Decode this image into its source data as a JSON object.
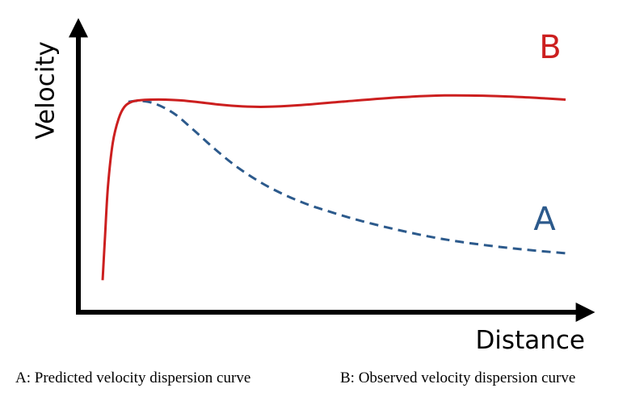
{
  "chart_data": {
    "type": "line",
    "title": "",
    "xlabel": "Distance",
    "ylabel": "Velocity",
    "grid": false,
    "ticks": false,
    "legend": "captions-below",
    "xlim": [
      0,
      100
    ],
    "ylim": [
      0,
      100
    ],
    "series": [
      {
        "name": "A",
        "style": "dashed",
        "color": "#2c5a8c",
        "x": [
          9.8,
          12.2,
          15.4,
          19.3,
          23.2,
          27.8,
          32.7,
          38.6,
          45.2,
          51.2,
          58.2,
          65.8,
          73.8,
          82.0,
          91.0,
          100.0
        ],
        "y": [
          82.5,
          83.0,
          81.5,
          76.5,
          68.5,
          58.5,
          49.0,
          40.0,
          32.5,
          27.5,
          22.5,
          18.0,
          14.0,
          11.0,
          8.5,
          6.5
        ]
      },
      {
        "name": "B",
        "style": "solid",
        "color": "#cc1f1f",
        "x": [
          4.5,
          5.0,
          5.6,
          6.6,
          7.8,
          9.0,
          10.5,
          12.2,
          14.4,
          17.4,
          20.8,
          24.8,
          29.0,
          33.4,
          38.0,
          45.0,
          55.0,
          66.0,
          75.0,
          83.0,
          90.0,
          96.0,
          100.0
        ],
        "y": [
          -7.0,
          15.0,
          40.0,
          62.0,
          74.0,
          80.0,
          82.5,
          83.3,
          83.6,
          83.6,
          83.2,
          82.2,
          81.0,
          80.2,
          80.0,
          80.8,
          82.8,
          84.8,
          85.7,
          85.6,
          85.0,
          84.2,
          83.6
        ]
      }
    ],
    "series_labels": [
      "A",
      "B"
    ]
  },
  "captions": {
    "a": "A: Predicted velocity dispersion curve",
    "b": "B: Observed velocity dispersion curve"
  }
}
